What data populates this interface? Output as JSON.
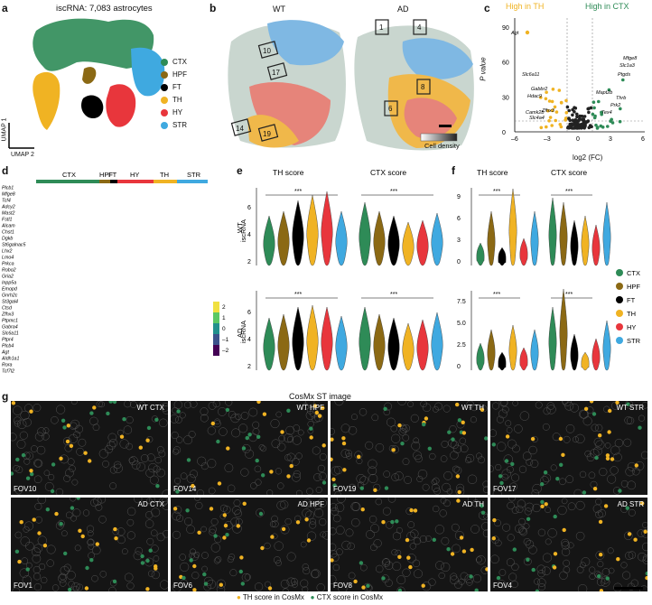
{
  "panels": {
    "a": "a",
    "b": "b",
    "c": "c",
    "d": "d",
    "e": "e",
    "f": "f",
    "g": "g"
  },
  "panel_a": {
    "title": "iscRNA: 7,083 astrocytes",
    "umap1": "UMAP 1",
    "umap2": "UMAP 2",
    "legend": [
      {
        "label": "CTX",
        "color": "#2e8b57"
      },
      {
        "label": "HPF",
        "color": "#8b6914"
      },
      {
        "label": "FT",
        "color": "#000000"
      },
      {
        "label": "TH",
        "color": "#f0b323"
      },
      {
        "label": "HY",
        "color": "#e8363c"
      },
      {
        "label": "STR",
        "color": "#3fa9e0"
      }
    ]
  },
  "panel_b": {
    "wt_label": "WT",
    "ad_label": "AD",
    "wt_boxes": [
      "10",
      "17",
      "14",
      "19"
    ],
    "ad_boxes": [
      "1",
      "4",
      "8",
      "6"
    ],
    "density_label": "Cell density"
  },
  "panel_c": {
    "high_th": "High in TH",
    "high_ctx": "High in CTX",
    "ylabel": "P value",
    "xlabel": "log2 (FC)",
    "yticks": [
      "0",
      "30",
      "60",
      "90"
    ],
    "xticks": [
      "–6",
      "–3",
      "0",
      "3",
      "6"
    ],
    "genes_left": [
      "Agt",
      "Slc6a11",
      "Gabbr2",
      "Hdac9",
      "Camk2b",
      "Slc4a4",
      "Zfhx3"
    ],
    "genes_right": [
      "Mfge8",
      "Slc1a3",
      "Ptgds",
      "Thrb",
      "Prk2",
      "Tex4",
      "Mapt2b"
    ]
  },
  "panel_d": {
    "groups": [
      "CTX",
      "HPF",
      "FT",
      "HY",
      "TH",
      "STR"
    ],
    "genes": [
      "Plcb1",
      "Mfge8",
      "Tcf4",
      "Adcy2",
      "Mast2",
      "Fstl1",
      "Alcam",
      "Chst1",
      "Dgkb",
      "St6galnac5",
      "Lhx2",
      "Lmo4",
      "Prkca",
      "Robo2",
      "Gria2",
      "Inpp5a",
      "Emopd",
      "Gnrh2c",
      "St3gal4",
      "Ctsd",
      "Zfhx3",
      "Ptpmc1",
      "Gabra4",
      "Slc6a11",
      "Ptpr4",
      "Plcb4",
      "Agt",
      "Aldh1a1",
      "Rora",
      "Tcf7l2"
    ],
    "scale": [
      "2",
      "1",
      "0",
      "–1",
      "–2"
    ]
  },
  "panel_e": {
    "th_score": "TH score",
    "ctx_score": "CTX score",
    "wt_label": "WT",
    "ad_label": "AD",
    "iscrna": "iscRNA",
    "sig": "***",
    "yticks": [
      "2",
      "4",
      "6"
    ]
  },
  "panel_f": {
    "th_score": "TH score",
    "ctx_score": "CTX score",
    "wt_label": "WT",
    "ad_label": "AD",
    "cosmx": "CosMx",
    "sig": "***",
    "yticks_top": [
      "0",
      "3",
      "6",
      "9"
    ],
    "yticks_bottom": [
      "0",
      "2.5",
      "5.0",
      "7.5"
    ],
    "legend": [
      {
        "label": "CTX",
        "color": "#2e8b57"
      },
      {
        "label": "HPF",
        "color": "#8b6914"
      },
      {
        "label": "FT",
        "color": "#000000"
      },
      {
        "label": "TH",
        "color": "#f0b323"
      },
      {
        "label": "HY",
        "color": "#e8363c"
      },
      {
        "label": "STR",
        "color": "#3fa9e0"
      }
    ]
  },
  "panel_g": {
    "title": "CosMx ST image",
    "fovs": [
      {
        "name": "FOV10",
        "label": "WT CTX"
      },
      {
        "name": "FOV14",
        "label": "WT HPF"
      },
      {
        "name": "FOV19",
        "label": "WT TH"
      },
      {
        "name": "FOV17",
        "label": "WT STR"
      },
      {
        "name": "FOV1",
        "label": "AD CTX"
      },
      {
        "name": "FOV6",
        "label": "AD HPF"
      },
      {
        "name": "FOV8",
        "label": "AD TH"
      },
      {
        "name": "FOV4",
        "label": "AD STR"
      }
    ],
    "legend_th": "TH score in CosMx",
    "legend_ctx": "CTX score in CosMx"
  }
}
